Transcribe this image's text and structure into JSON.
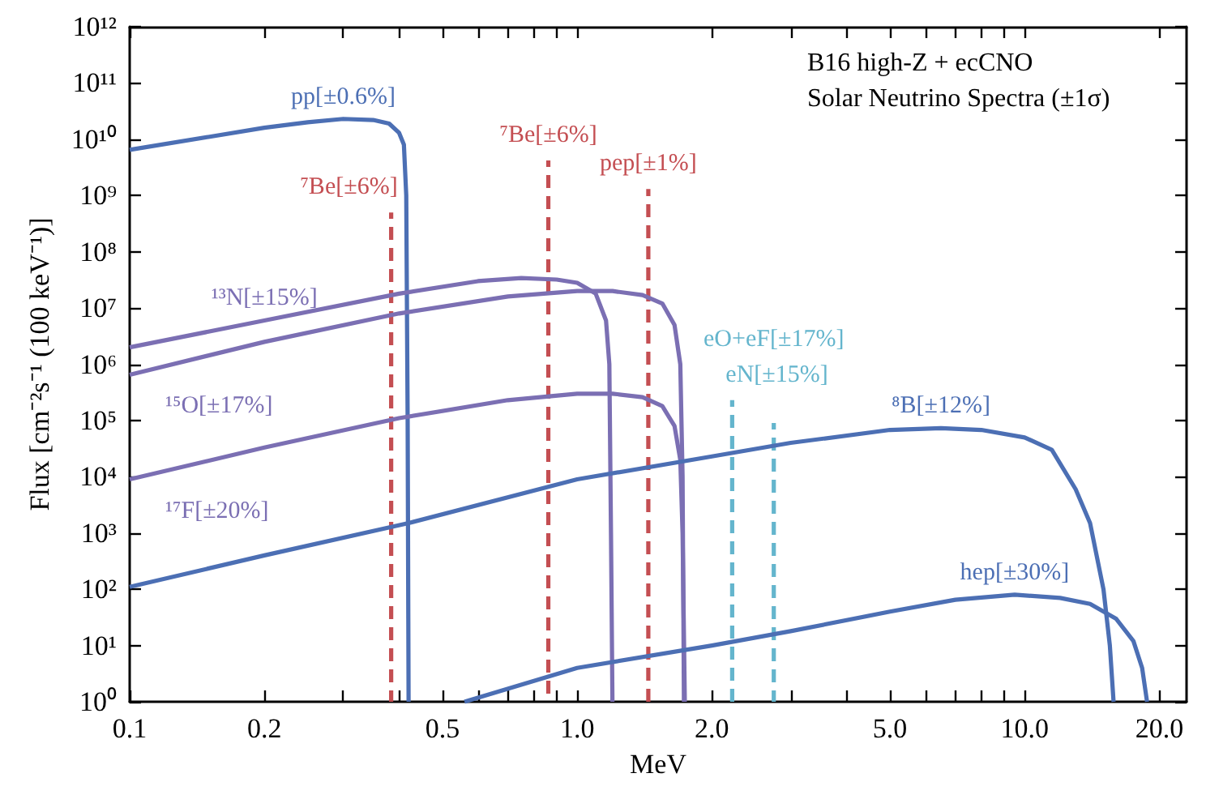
{
  "chart_data": {
    "type": "line",
    "title": "B16 high-Z + ecCNO",
    "subtitle": "Solar Neutrino Spectra (±1σ)",
    "xlabel": "MeV",
    "ylabel": "Flux [cm⁻²s⁻¹ (100 keV⁻¹)]",
    "log": "xy",
    "marker": "none",
    "line_style": "solid",
    "xlim": [
      0.1,
      23
    ],
    "ylim": [
      1,
      1000000000000.0
    ],
    "xticks": [
      {
        "value": 0.1,
        "label": "0.1"
      },
      {
        "value": 0.2,
        "label": "0.2"
      },
      {
        "value": 0.3,
        "label": null
      },
      {
        "value": 0.4,
        "label": null
      },
      {
        "value": 0.5,
        "label": "0.5"
      },
      {
        "value": 0.6,
        "label": null
      },
      {
        "value": 0.7,
        "label": null
      },
      {
        "value": 0.8,
        "label": null
      },
      {
        "value": 0.9,
        "label": null
      },
      {
        "value": 1,
        "label": "1.0"
      },
      {
        "value": 2,
        "label": "2.0"
      },
      {
        "value": 3,
        "label": null
      },
      {
        "value": 4,
        "label": null
      },
      {
        "value": 5,
        "label": "5.0"
      },
      {
        "value": 6,
        "label": null
      },
      {
        "value": 7,
        "label": null
      },
      {
        "value": 8,
        "label": null
      },
      {
        "value": 9,
        "label": null
      },
      {
        "value": 10,
        "label": "10.0"
      },
      {
        "value": 20,
        "label": "20.0"
      }
    ],
    "yticks": [
      {
        "value": 1,
        "label": "10⁰"
      },
      {
        "value": 10,
        "label": "10¹"
      },
      {
        "value": 100,
        "label": "10²"
      },
      {
        "value": 1000,
        "label": "10³"
      },
      {
        "value": 10000,
        "label": "10⁴"
      },
      {
        "value": 100000,
        "label": "10⁵"
      },
      {
        "value": 1000000,
        "label": "10⁶"
      },
      {
        "value": 10000000,
        "label": "10⁷"
      },
      {
        "value": 100000000,
        "label": "10⁸"
      },
      {
        "value": 1000000000,
        "label": "10⁹"
      },
      {
        "value": 10000000000,
        "label": "10¹⁰"
      },
      {
        "value": 100000000000,
        "label": "10¹¹"
      },
      {
        "value": 1000000000000,
        "label": "10¹²"
      }
    ],
    "series": [
      {
        "color": "#4c6fb4",
        "x": [
          0.1,
          0.15,
          0.2,
          0.25,
          0.3,
          0.35,
          0.38,
          0.4,
          0.41,
          0.415,
          0.418,
          0.42
        ],
        "values": [
          6500000000.0,
          11000000000.0,
          16000000000.0,
          20000000000.0,
          23000000000.0,
          22000000000.0,
          19000000000.0,
          13000000000.0,
          8000000000.0,
          1000000000.0,
          100000.0,
          1
        ]
      },
      {
        "color": "#c44e52",
        "line_style": "dashed",
        "x": [
          0.384,
          0.384
        ],
        "values": [
          1,
          500000000.0
        ]
      },
      {
        "color": "#c44e52",
        "line_style": "dashed",
        "x": [
          0.862,
          0.862
        ],
        "values": [
          1,
          4200000000.0
        ]
      },
      {
        "color": "#c44e52",
        "line_style": "dashed",
        "x": [
          1.442,
          1.442
        ],
        "values": [
          1,
          1300000000.0
        ]
      },
      {
        "color": "#7b6fb3",
        "x": [
          0.1,
          0.2,
          0.4,
          0.6,
          0.75,
          0.9,
          1.0,
          1.1,
          1.16,
          1.18,
          1.19,
          1.199
        ],
        "values": [
          2000000.0,
          6000000.0,
          18000000.0,
          30000000.0,
          34000000.0,
          32000000.0,
          28000000.0,
          18000000.0,
          6000000.0,
          1000000.0,
          1000.0,
          1
        ]
      },
      {
        "color": "#7b6fb3",
        "x": [
          0.1,
          0.2,
          0.4,
          0.7,
          1.0,
          1.2,
          1.4,
          1.55,
          1.65,
          1.7,
          1.72,
          1.732
        ],
        "values": [
          650000.0,
          2500000.0,
          8000000.0,
          16000000.0,
          20000000.0,
          20000000.0,
          17000000.0,
          12000000.0,
          5000000.0,
          1000000.0,
          10000.0,
          1
        ]
      },
      {
        "color": "#7b6fb3",
        "x": [
          0.1,
          0.2,
          0.4,
          0.7,
          1.0,
          1.2,
          1.4,
          1.55,
          1.65,
          1.7,
          1.72,
          1.74
        ],
        "values": [
          9000.0,
          33000.0,
          110000.0,
          230000.0,
          300000.0,
          300000.0,
          260000.0,
          180000.0,
          80000.0,
          20000.0,
          1000.0,
          1
        ]
      },
      {
        "color": "#64b5cd",
        "line_style": "dashed",
        "x": [
          2.22,
          2.22
        ],
        "values": [
          1,
          230000.0
        ]
      },
      {
        "color": "#64b5cd",
        "line_style": "dashed",
        "x": [
          2.75,
          2.75
        ],
        "values": [
          1,
          90000.0
        ]
      },
      {
        "color": "#4c6fb4",
        "x": [
          0.1,
          0.2,
          0.42,
          1.0,
          2.0,
          3.0,
          5.0,
          6.5,
          8.0,
          10.0,
          11.5,
          13.0,
          14.0,
          15.0,
          15.5,
          15.8
        ],
        "values": [
          110,
          400,
          1500,
          9000,
          23000,
          40000,
          68000,
          73000,
          68000,
          50000,
          30000,
          6000,
          1500,
          100,
          10,
          1
        ]
      },
      {
        "color": "#4c6fb4",
        "x": [
          0.56,
          1.0,
          2.0,
          3.0,
          5.0,
          7.0,
          9.5,
          12.0,
          14.0,
          16.0,
          17.5,
          18.3,
          18.77
        ],
        "values": [
          1,
          4,
          10,
          18,
          40,
          65,
          80,
          70,
          55,
          30,
          12,
          4,
          1
        ]
      }
    ],
    "annotations": [
      {
        "text": "pp[±0.6%]",
        "x": 0.3,
        "y": 23000000000.0
      },
      {
        "text": "⁷Be[±6%]",
        "x": 0.384,
        "y": 500000000.0
      },
      {
        "text": "⁷Be[±6%]",
        "x": 0.862,
        "y": 4200000000.0
      },
      {
        "text": "pep[±1%]",
        "x": 1.442,
        "y": 1300000000.0
      },
      {
        "text": "¹³N[±15%]",
        "x": 0.2,
        "y": 6000000.0
      },
      {
        "text": "¹⁵O[±17%]",
        "x": 0.1,
        "y": 650000.0
      },
      {
        "text": "¹⁷F[±20%]",
        "x": 0.1,
        "y": 9000.0
      },
      {
        "text": "eN[±15%]",
        "x": 2.22,
        "y": 230000.0
      },
      {
        "text": "eO+eF[±17%]",
        "x": 2.75,
        "y": 90000.0
      },
      {
        "text": "⁸B[±12%]",
        "x": 6.5,
        "y": 73000
      },
      {
        "text": "hep[±30%]",
        "x": 9.5,
        "y": 80
      }
    ]
  }
}
